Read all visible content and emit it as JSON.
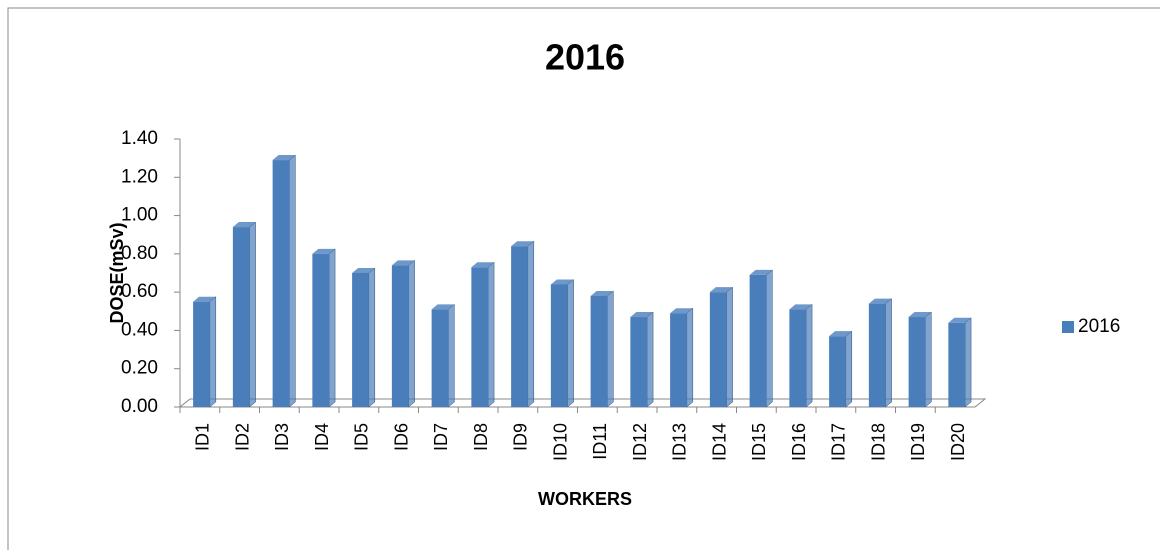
{
  "chart_data": {
    "type": "bar",
    "title": "2016",
    "x_label": "WORKERS",
    "y_label": "DOSE(mSv)",
    "categories": [
      "ID1",
      "ID2",
      "ID3",
      "ID4",
      "ID5",
      "ID6",
      "ID7",
      "ID8",
      "ID9",
      "ID10",
      "ID11",
      "ID12",
      "ID13",
      "ID14",
      "ID15",
      "ID16",
      "ID17",
      "ID18",
      "ID19",
      "ID20"
    ],
    "series": [
      {
        "name": "2016",
        "color": "#4a7ebb",
        "values": [
          0.55,
          0.94,
          1.29,
          0.8,
          0.7,
          0.74,
          0.51,
          0.73,
          0.84,
          0.64,
          0.58,
          0.47,
          0.49,
          0.6,
          0.69,
          0.51,
          0.37,
          0.54,
          0.47,
          0.44
        ]
      }
    ],
    "ylim": [
      0,
      1.4
    ],
    "yticks": [
      {
        "value": 0,
        "label": "0.00"
      },
      {
        "value": 0.2,
        "label": "0.20"
      },
      {
        "value": 0.4,
        "label": "0.40"
      },
      {
        "value": 0.6,
        "label": "0.60"
      },
      {
        "value": 0.8,
        "label": "0.80"
      },
      {
        "value": 1.0,
        "label": "1.00"
      },
      {
        "value": 1.2,
        "label": "1.20"
      },
      {
        "value": 1.4,
        "label": "1.40"
      }
    ],
    "legend": "right"
  }
}
